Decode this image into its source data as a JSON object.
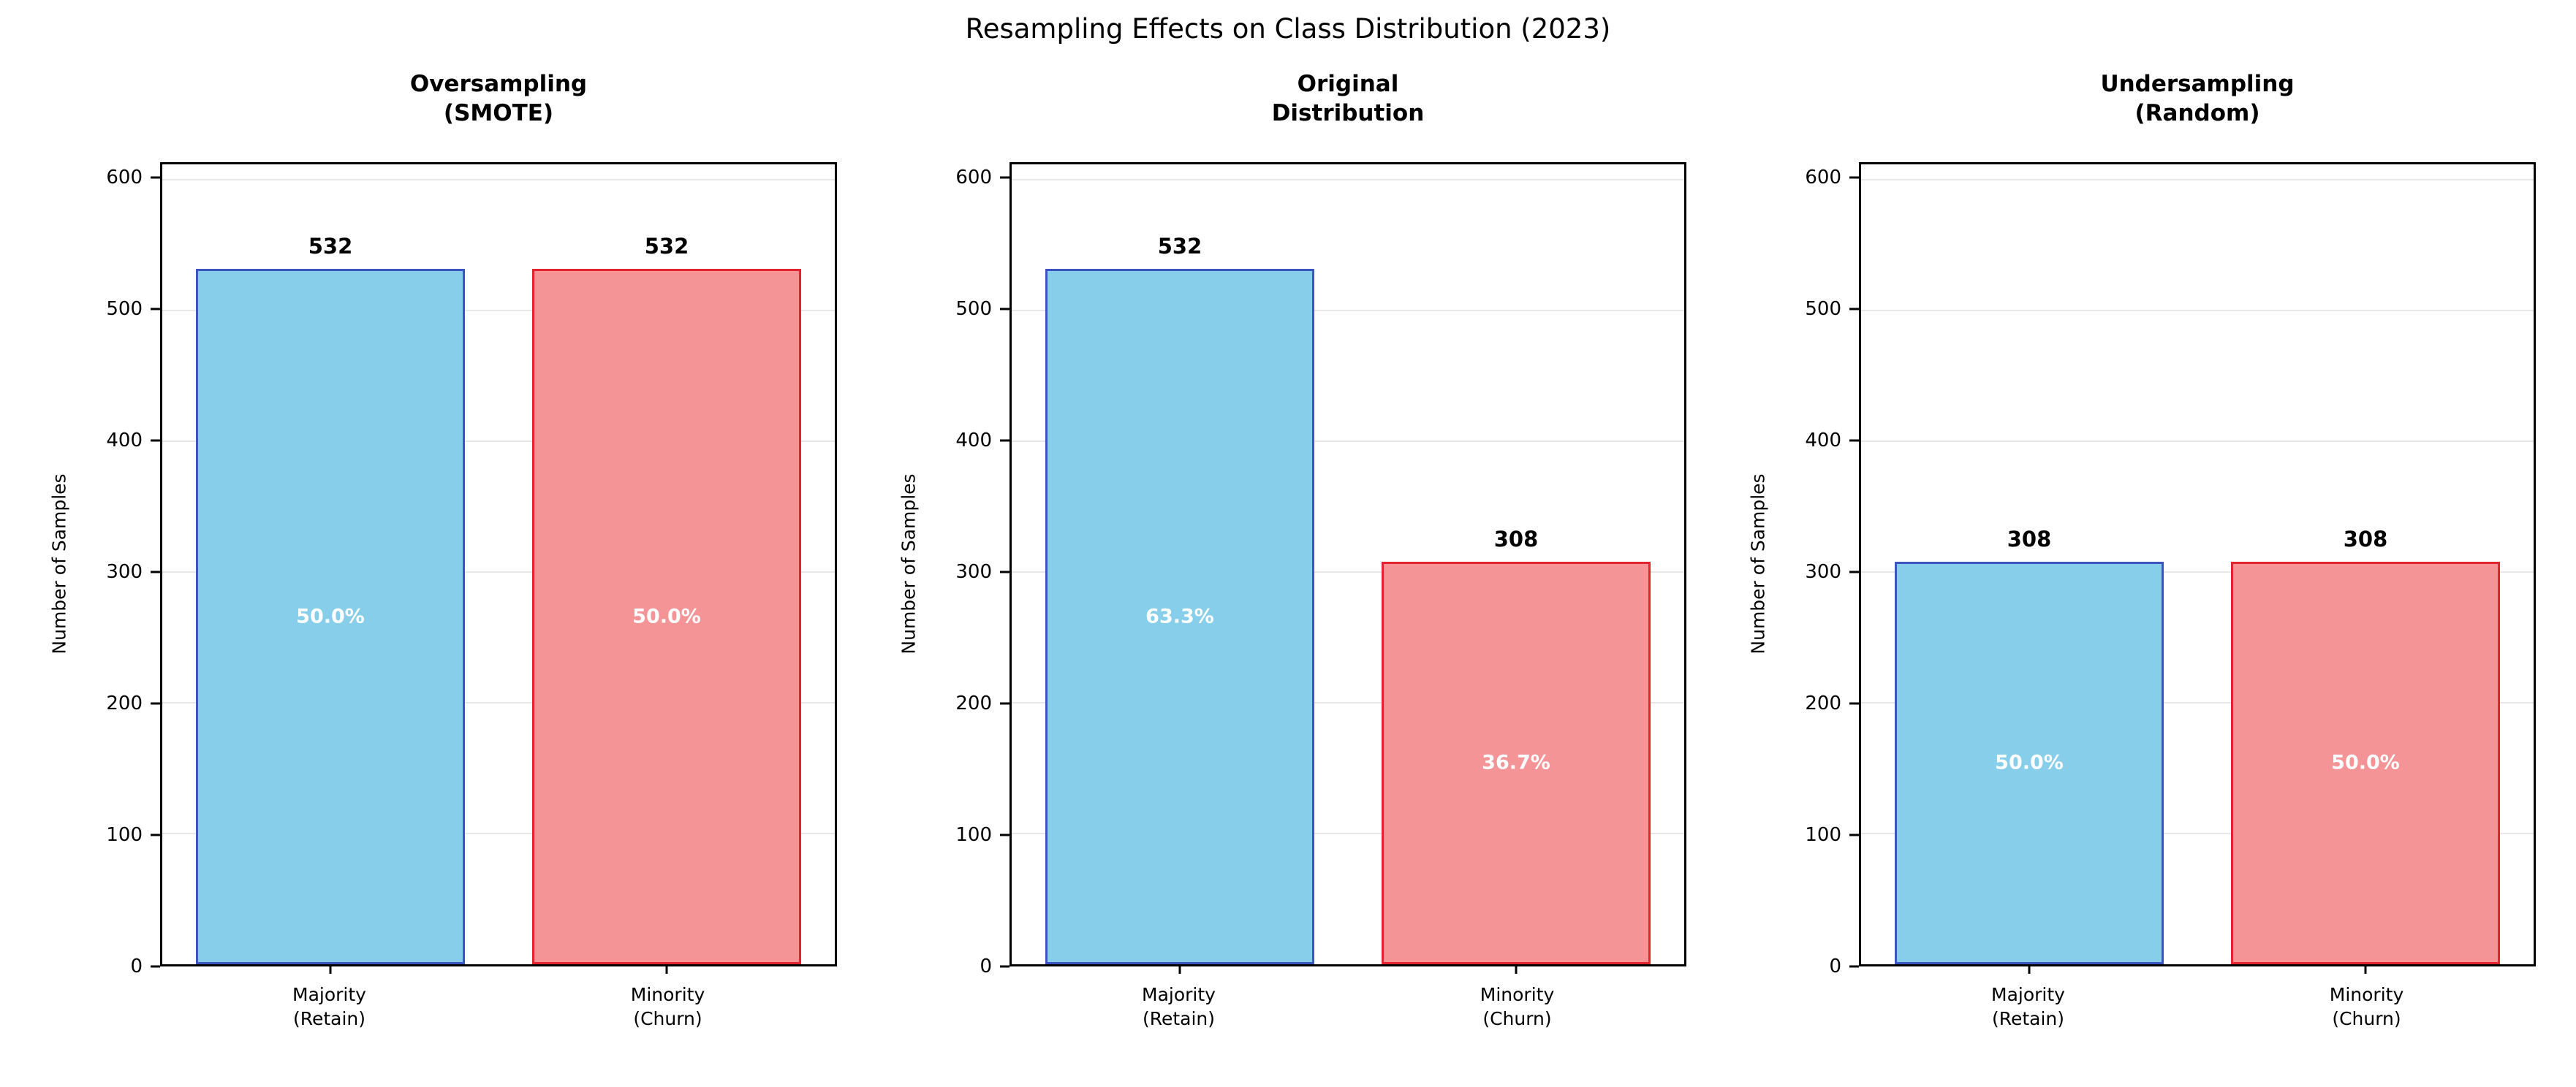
{
  "figure": {
    "title": "Resampling Effects on Class Distribution (2023)"
  },
  "axes": {
    "ylabel": "Number of Samples",
    "yticks": [
      0,
      100,
      200,
      300,
      400,
      500,
      600
    ],
    "ylim": [
      0,
      612
    ],
    "grid": "horizontal"
  },
  "chart_data": [
    {
      "type": "bar",
      "title": "Oversampling\n(SMOTE)",
      "categories": [
        "Majority\n(Retain)",
        "Minority\n(Churn)"
      ],
      "values": [
        532,
        532
      ],
      "bar_labels": [
        "532",
        "532"
      ],
      "pct_labels": [
        "50.0%",
        "50.0%"
      ],
      "ylabel": "Number of Samples",
      "ylim": [
        0,
        612
      ]
    },
    {
      "type": "bar",
      "title": "Original\nDistribution",
      "categories": [
        "Majority\n(Retain)",
        "Minority\n(Churn)"
      ],
      "values": [
        532,
        308
      ],
      "bar_labels": [
        "532",
        "308"
      ],
      "pct_labels": [
        "63.3%",
        "36.7%"
      ],
      "ylabel": "Number of Samples",
      "ylim": [
        0,
        612
      ]
    },
    {
      "type": "bar",
      "title": "Undersampling\n(Random)",
      "categories": [
        "Majority\n(Retain)",
        "Minority\n(Churn)"
      ],
      "values": [
        308,
        308
      ],
      "bar_labels": [
        "308",
        "308"
      ],
      "pct_labels": [
        "50.0%",
        "50.0%"
      ],
      "ylabel": "Number of Samples",
      "ylim": [
        0,
        612
      ]
    }
  ],
  "colors": {
    "majority_fill": "#87CEEB",
    "majority_edge": "#3C55C3",
    "minority_fill": "#F49496",
    "minority_edge": "#E3242E",
    "grid": "#E7E7E7",
    "value_text": "#000000",
    "pct_text": "#FFFFFF"
  }
}
